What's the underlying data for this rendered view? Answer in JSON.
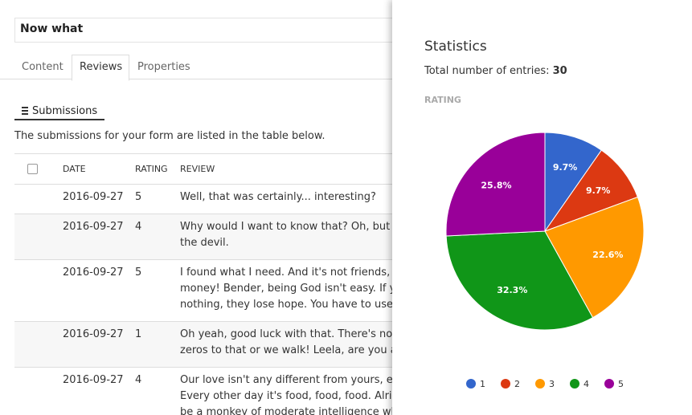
{
  "form": {
    "title": "Now what",
    "tabs": [
      "Content",
      "Reviews",
      "Properties"
    ],
    "section": "Submissions",
    "description": "The submissions for your form are listed in the table below."
  },
  "table": {
    "headers": [
      "DATE",
      "RATING",
      "REVIEW"
    ],
    "rows": [
      {
        "date": "2016-09-27",
        "rating": "5",
        "review": [
          "Well, that was certainly... interesting?"
        ]
      },
      {
        "date": "2016-09-27",
        "rating": "4",
        "review": [
          "Why would I want to know that? Oh, but",
          "the devil."
        ]
      },
      {
        "date": "2016-09-27",
        "rating": "5",
        "review": [
          "I found what I need. And it's not friends,",
          "money! Bender, being God isn't easy. If y",
          "nothing, they lose hope. You have to use"
        ]
      },
      {
        "date": "2016-09-27",
        "rating": "1",
        "review": [
          "Oh yeah, good luck with that. There's no",
          "zeros to that or we walk! Leela, are you a"
        ]
      },
      {
        "date": "2016-09-27",
        "rating": "4",
        "review": [
          "Our love isn't any different from yours, e",
          "Every other day it's food, food, food. Alrig",
          "be a monkey of moderate intelligence wh"
        ]
      }
    ]
  },
  "panel": {
    "title": "Statistics",
    "total_label": "Total number of entries:",
    "total": 30
  },
  "chart_data": {
    "type": "pie",
    "title": "RATING",
    "categories": [
      "1",
      "2",
      "3",
      "4",
      "5"
    ],
    "values": [
      9.7,
      9.7,
      22.6,
      32.3,
      25.8
    ],
    "value_labels": [
      "9.7%",
      "9.7%",
      "22.6%",
      "32.3%",
      "25.8%"
    ],
    "colors": [
      "#3366cc",
      "#dc3912",
      "#ff9900",
      "#109618",
      "#990099"
    ]
  }
}
